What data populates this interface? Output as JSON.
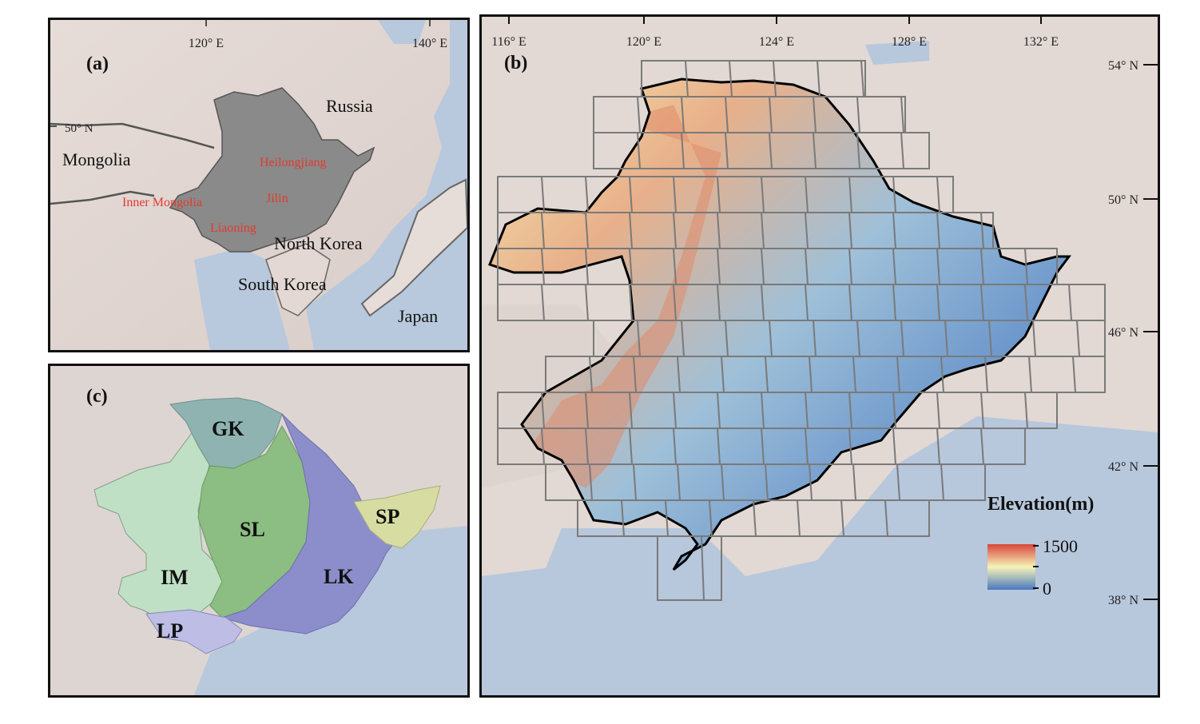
{
  "panel_a": {
    "label": "(a)",
    "lon_ticks": [
      "120° E",
      "140° E"
    ],
    "lat_tick": "50° N",
    "countries": {
      "russia": "Russia",
      "mongolia": "Mongolia",
      "north_korea": "North Korea",
      "south_korea": "South Korea",
      "japan": "Japan"
    },
    "provinces": {
      "heilongjiang": "Heilongjiang",
      "jilin": "Jilin",
      "liaoning": "Liaoning",
      "inner_mongolia": "Inner Mongolia"
    },
    "province_color": "#e03a2e",
    "region_color": "#8a8a8a"
  },
  "panel_b": {
    "label": "(b)",
    "lon_ticks": [
      "116° E",
      "120° E",
      "124° E",
      "128° E",
      "132° E"
    ],
    "lat_ticks": [
      "54° N",
      "50° N",
      "46° N",
      "42° N",
      "38° N"
    ],
    "legend": {
      "title": "Elevation(m)",
      "max": "1500",
      "min": "0",
      "color_high": "#d7473a",
      "color_mid": "#f6f3b8",
      "color_low": "#4a79c0"
    }
  },
  "panel_c": {
    "label": "(c)",
    "zones": {
      "gk": "GK",
      "sl": "SL",
      "lk": "LK",
      "sp": "SP",
      "im": "IM",
      "lp": "LP"
    },
    "zone_colors": {
      "gk": "#8fb3b0",
      "sl": "#8cbd83",
      "lk": "#8c8ecb",
      "sp": "#d7dda2",
      "im": "#bfe0c5",
      "lp": "#bdbde6"
    }
  }
}
